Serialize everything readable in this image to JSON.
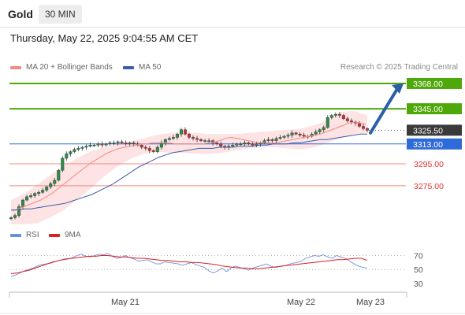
{
  "header": {
    "symbol": "Gold",
    "timeframe": "30 MIN"
  },
  "datetime": "Thursday, May 22, 2025 9:04:55 AM CET",
  "legend": {
    "bollinger": "MA 20 + Bollinger Bands",
    "ma50": "MA 50",
    "rsi": "RSI",
    "rsi_ma": "9MA"
  },
  "credit": "Research © 2025 Trading Central",
  "colors": {
    "bollinger": "#f28b82",
    "ma50": "#3a5ea8",
    "resistance": "#4fa80a",
    "support": "#f28b82",
    "current": "#3a3a3a",
    "pivot": "#2f6bd8",
    "rsi": "#6b8fe0",
    "rsi_ma": "#dd2020",
    "arrow": "#2b5fa8"
  },
  "chart_data": [
    {
      "type": "candlestick",
      "title": "Gold 30 MIN",
      "y_range": [
        3242,
        3378
      ],
      "x_ticks": [
        "May 21",
        "May 22",
        "May 23"
      ],
      "levels": [
        {
          "value": 3368.0,
          "label": "3368.00",
          "kind": "resistance"
        },
        {
          "value": 3345.0,
          "label": "3345.00",
          "kind": "resistance"
        },
        {
          "value": 3325.5,
          "label": "3325.50",
          "kind": "current"
        },
        {
          "value": 3313.0,
          "label": "3313.00",
          "kind": "pivot"
        },
        {
          "value": 3295.0,
          "label": "3295.00",
          "kind": "support"
        },
        {
          "value": 3275.0,
          "label": "3275.00",
          "kind": "support"
        }
      ],
      "close_path": [
        3246,
        3248,
        3256,
        3262,
        3265,
        3266,
        3268,
        3269,
        3271,
        3274,
        3277,
        3280,
        3289,
        3300,
        3304,
        3306,
        3308,
        3309,
        3310,
        3311,
        3312,
        3312,
        3313,
        3312,
        3313,
        3314,
        3314,
        3315,
        3314,
        3313,
        3314,
        3313,
        3312,
        3310,
        3309,
        3307,
        3306,
        3310,
        3314,
        3317,
        3318,
        3319,
        3322,
        3326,
        3322,
        3319,
        3318,
        3317,
        3316,
        3316,
        3316,
        3314,
        3313,
        3311,
        3310,
        3311,
        3312,
        3313,
        3313,
        3314,
        3313,
        3312,
        3313,
        3314,
        3316,
        3317,
        3316,
        3318,
        3319,
        3320,
        3321,
        3323,
        3322,
        3321,
        3320,
        3320,
        3322,
        3324,
        3326,
        3328,
        3337,
        3339,
        3340,
        3339,
        3336,
        3334,
        3333,
        3332,
        3329,
        3327,
        3325.5
      ],
      "ma20_path": [
        3252,
        3254,
        3256,
        3258,
        3260,
        3262,
        3265,
        3268,
        3272,
        3276,
        3280,
        3284,
        3288,
        3292,
        3296,
        3299,
        3302,
        3305,
        3307,
        3309,
        3310,
        3311,
        3312,
        3313,
        3313,
        3314,
        3314,
        3314,
        3314,
        3313,
        3313,
        3313,
        3313,
        3313,
        3313,
        3314,
        3315,
        3316,
        3318,
        3319,
        3318,
        3317,
        3316,
        3315,
        3314,
        3314,
        3314,
        3314,
        3315,
        3316,
        3317,
        3318,
        3319,
        3320,
        3321,
        3322,
        3324,
        3326,
        3328,
        3330,
        3332,
        3333,
        3332,
        3331
      ],
      "ma50_path": [
        3253,
        3253,
        3254,
        3254,
        3255,
        3256,
        3257,
        3258,
        3259,
        3261,
        3263,
        3265,
        3267,
        3270,
        3273,
        3276,
        3280,
        3284,
        3288,
        3292,
        3295,
        3298,
        3301,
        3303,
        3305,
        3306,
        3307,
        3308,
        3309,
        3309,
        3309,
        3310,
        3310,
        3310,
        3311,
        3311,
        3311,
        3312,
        3312,
        3313,
        3313,
        3313,
        3314,
        3314,
        3315,
        3316,
        3317,
        3317,
        3318,
        3319,
        3320,
        3321,
        3322,
        3322
      ],
      "bb_upper": [
        3262,
        3268,
        3276,
        3285,
        3293,
        3300,
        3306,
        3310,
        3313,
        3315,
        3318,
        3321,
        3323,
        3323,
        3323,
        3322,
        3322,
        3322,
        3323,
        3324,
        3325,
        3326,
        3327,
        3330,
        3335,
        3342,
        3343,
        3339
      ],
      "bb_lower": [
        3240,
        3240,
        3241,
        3246,
        3253,
        3262,
        3272,
        3283,
        3292,
        3299,
        3304,
        3306,
        3305,
        3305,
        3304,
        3304,
        3305,
        3307,
        3309,
        3310,
        3310,
        3309,
        3308,
        3310,
        3314,
        3318,
        3322,
        3323
      ],
      "forecast_target": 3368
    },
    {
      "type": "line",
      "title": "RSI",
      "y_ticks": [
        70,
        50,
        30
      ],
      "y_range": [
        22,
        83
      ],
      "series": [
        {
          "name": "RSI",
          "values": [
            40,
            42,
            45,
            48,
            50,
            52,
            55,
            57,
            58,
            59,
            61,
            63,
            64,
            65,
            67,
            70,
            72,
            69,
            68,
            70,
            72,
            71,
            73,
            69,
            66,
            67,
            70,
            67,
            65,
            62,
            63,
            64,
            61,
            58,
            58,
            61,
            60,
            59,
            58,
            56,
            58,
            60,
            57,
            55,
            53,
            48,
            45,
            48,
            52,
            47,
            52,
            55,
            53,
            51,
            49,
            52,
            54,
            56,
            58,
            55,
            53,
            54,
            55,
            57,
            59,
            60,
            62,
            66,
            68,
            70,
            69,
            71,
            68,
            66,
            70,
            68,
            66,
            62,
            58,
            55,
            53,
            52
          ]
        },
        {
          "name": "9MA",
          "values": [
            44,
            45,
            47,
            49,
            52,
            55,
            58,
            61,
            63,
            65,
            66,
            67,
            68,
            69,
            69,
            70,
            70,
            69,
            68,
            68,
            67,
            66,
            66,
            65,
            64,
            63,
            63,
            62,
            61,
            61,
            60,
            60,
            59,
            58,
            57,
            55,
            54,
            53,
            52,
            52,
            51,
            51,
            52,
            53,
            54,
            55,
            56,
            57,
            58,
            59,
            60,
            61,
            62,
            63,
            64,
            64,
            65,
            66,
            66,
            63
          ]
        }
      ]
    }
  ]
}
